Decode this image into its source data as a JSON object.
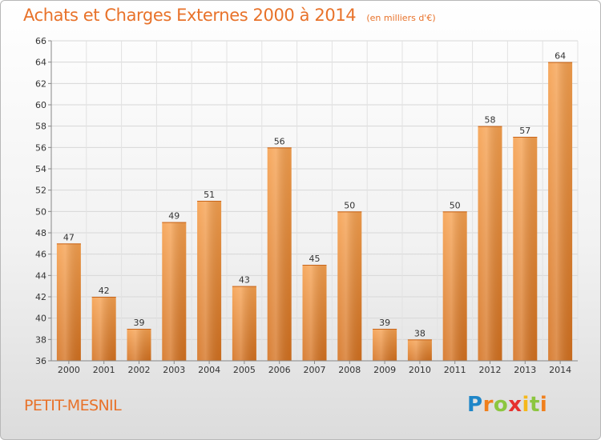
{
  "header": {
    "title": "Achats et Charges Externes 2000 à 2014",
    "unit": "(en milliers d'€)"
  },
  "footer": {
    "commune": "PETIT-MESNIL",
    "logo_text": "Proxiti"
  },
  "colors": {
    "accent": "#e8722a",
    "bar_top": "#f6a04e",
    "bar_bottom": "#d4711f"
  },
  "chart_data": {
    "type": "bar",
    "title": "Achats et Charges Externes 2000 à 2014",
    "subtitle": "(en milliers d'€)",
    "xlabel": "",
    "ylabel": "",
    "categories": [
      "2000",
      "2001",
      "2002",
      "2003",
      "2004",
      "2005",
      "2006",
      "2007",
      "2008",
      "2009",
      "2010",
      "2011",
      "2012",
      "2013",
      "2014"
    ],
    "values": [
      47,
      42,
      39,
      49,
      51,
      43,
      56,
      45,
      50,
      39,
      38,
      50,
      58,
      57,
      64
    ],
    "ylim": [
      36,
      66
    ],
    "yticks": [
      36,
      38,
      40,
      42,
      44,
      46,
      48,
      50,
      52,
      54,
      56,
      58,
      60,
      62,
      64,
      66
    ],
    "grid": true,
    "legend": "none"
  }
}
